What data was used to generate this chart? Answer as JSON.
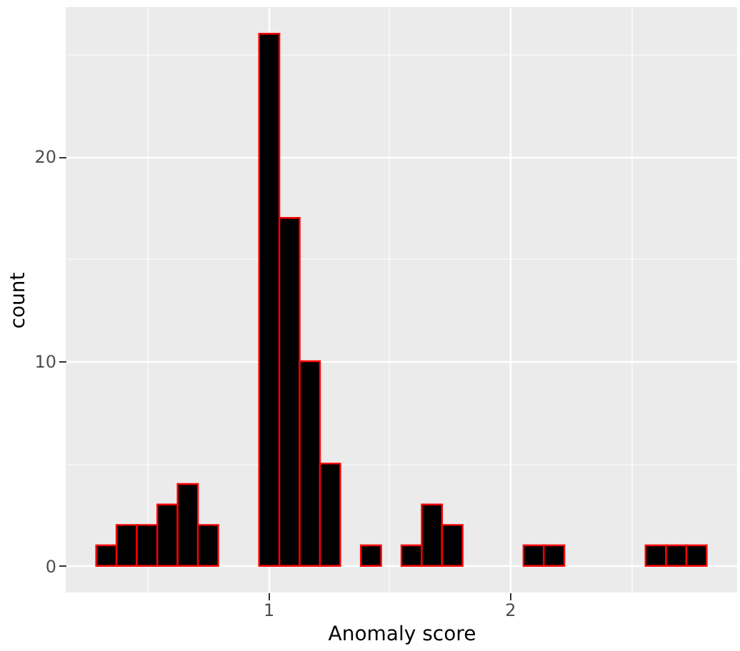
{
  "chart_data": {
    "type": "histogram",
    "xlabel": "Anomaly score",
    "ylabel": "count",
    "bins": [
      0.288,
      0.372,
      0.456,
      0.541,
      0.625,
      0.709,
      0.793,
      0.877,
      0.962,
      1.046,
      1.13,
      1.214,
      1.298,
      1.383,
      1.467,
      1.551,
      1.635,
      1.719,
      1.804,
      1.888,
      1.972,
      2.056,
      2.14,
      2.225,
      2.309,
      2.393,
      2.477,
      2.561,
      2.646,
      2.73,
      2.814
    ],
    "values": [
      1,
      2,
      2,
      3,
      4,
      2,
      0,
      0,
      26,
      17,
      10,
      5,
      0,
      1,
      0,
      1,
      3,
      2,
      0,
      0,
      0,
      1,
      1,
      0,
      0,
      0,
      0,
      1,
      1,
      1
    ],
    "color": "#000000",
    "xlim": [
      0.162,
      2.94
    ],
    "ylim": [
      -1.3,
      27.3
    ],
    "xticks": [
      {
        "value": 0.5,
        "label": null
      },
      1,
      {
        "value": 1.5,
        "label": null
      },
      2,
      {
        "value": 2.5,
        "label": null
      }
    ],
    "yticks": [
      0,
      {
        "value": 5,
        "label": null
      },
      10,
      {
        "value": 15,
        "label": null
      },
      20,
      {
        "value": 25,
        "label": null
      }
    ],
    "grid": true
  }
}
